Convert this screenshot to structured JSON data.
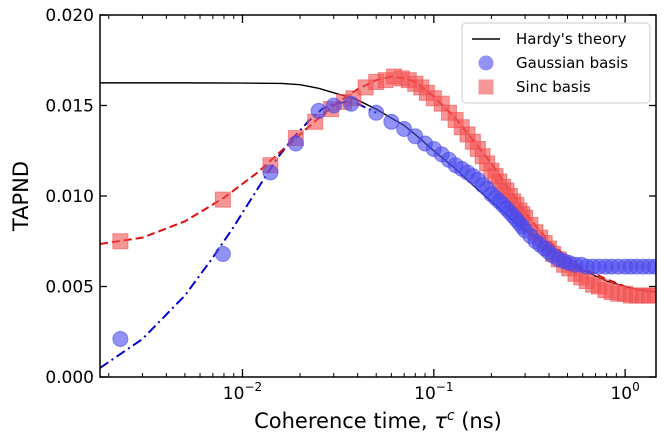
{
  "chart_data": {
    "type": "scatter",
    "ylabel": "TAPND",
    "xlabel": "Coherence time, ",
    "xlabel_symbol": "τ",
    "xlabel_superscript": "c",
    "xlabel_unit": " (ns)",
    "xscale": "log",
    "xlim": [
      0.0018,
      1.45
    ],
    "ylim": [
      0,
      0.02
    ],
    "grid": false,
    "legend_position": "top-right",
    "x_ticks": [
      {
        "value": 0.01,
        "base": "10",
        "exp": "−2"
      },
      {
        "value": 0.1,
        "base": "10",
        "exp": "−1"
      },
      {
        "value": 1,
        "base": "10",
        "exp": "0"
      }
    ],
    "y_ticks": [
      {
        "value": 0,
        "label": "0.000"
      },
      {
        "value": 0.005,
        "label": "0.005"
      },
      {
        "value": 0.01,
        "label": "0.010"
      },
      {
        "value": 0.015,
        "label": "0.015"
      },
      {
        "value": 0.02,
        "label": "0.020"
      }
    ],
    "legend": [
      {
        "label": "Hardy's theory",
        "kind": "line",
        "color": "#000000"
      },
      {
        "label": "Gaussian basis",
        "kind": "circle",
        "color": "#4a4aee"
      },
      {
        "label": "Sinc basis",
        "kind": "square",
        "color": "#f25050"
      }
    ],
    "series": [
      {
        "name": "Hardy's theory",
        "kind": "line",
        "color": "#000000",
        "dash": "",
        "x": [
          0.0018,
          0.005,
          0.01,
          0.016,
          0.02,
          0.025,
          0.03,
          0.035,
          0.04,
          0.05,
          0.06,
          0.07,
          0.08,
          0.1,
          0.13,
          0.16,
          0.2,
          0.25,
          0.3,
          0.4,
          0.5,
          0.6,
          0.8,
          1.0,
          1.2,
          1.45
        ],
        "y": [
          0.01625,
          0.01625,
          0.01624,
          0.01622,
          0.01615,
          0.01595,
          0.0157,
          0.0155,
          0.0153,
          0.0148,
          0.0143,
          0.0139,
          0.0134,
          0.0125,
          0.0115,
          0.0106,
          0.0097,
          0.0088,
          0.0081,
          0.0072,
          0.0064,
          0.0059,
          0.0053,
          0.005,
          0.0048,
          0.0047
        ]
      },
      {
        "name": "Gaussian fit",
        "kind": "line",
        "color": "#0000c8",
        "dash": "10,4,2,4",
        "x": [
          0.0018,
          0.003,
          0.005,
          0.007,
          0.009,
          0.012,
          0.015,
          0.018,
          0.022,
          0.026,
          0.03,
          0.035,
          0.04,
          0.05
        ],
        "y": [
          0.0005,
          0.0021,
          0.0045,
          0.0066,
          0.0083,
          0.0104,
          0.012,
          0.0131,
          0.0141,
          0.0148,
          0.0151,
          0.0152,
          0.0151,
          0.0146
        ]
      },
      {
        "name": "Sinc fit",
        "kind": "line",
        "color": "#e01010",
        "dash": "8,4",
        "x": [
          0.0018,
          0.003,
          0.005,
          0.008,
          0.012,
          0.016,
          0.02,
          0.025,
          0.03,
          0.035,
          0.04,
          0.05,
          0.06,
          0.07,
          0.08,
          0.1,
          0.13,
          0.16,
          0.2,
          0.25,
          0.3,
          0.35,
          0.4,
          0.5,
          0.6,
          0.8,
          1.0,
          1.2,
          1.45
        ],
        "y": [
          0.00735,
          0.0077,
          0.0086,
          0.0099,
          0.0113,
          0.0125,
          0.0134,
          0.0143,
          0.015,
          0.0155,
          0.0159,
          0.0164,
          0.0166,
          0.0165,
          0.0163,
          0.0155,
          0.0143,
          0.0131,
          0.0118,
          0.0103,
          0.0091,
          0.0082,
          0.0075,
          0.0066,
          0.006,
          0.0054,
          0.005,
          0.0048,
          0.0047
        ]
      },
      {
        "name": "Sinc basis",
        "kind": "square",
        "color": "#f25050",
        "x": [
          0.0023,
          0.0079,
          0.014,
          0.019,
          0.024,
          0.029,
          0.034,
          0.038,
          0.044,
          0.05,
          0.056,
          0.062,
          0.068,
          0.074,
          0.08,
          0.086,
          0.092,
          0.1,
          0.11,
          0.12,
          0.13,
          0.14,
          0.15,
          0.16,
          0.17,
          0.18,
          0.19,
          0.2,
          0.21,
          0.22,
          0.23,
          0.24,
          0.25,
          0.26,
          0.27,
          0.28,
          0.29,
          0.3,
          0.32,
          0.34,
          0.36,
          0.38,
          0.4,
          0.42,
          0.45,
          0.48,
          0.51,
          0.55,
          0.59,
          0.63,
          0.68,
          0.73,
          0.79,
          0.85,
          0.92,
          1.0,
          1.07,
          1.15,
          1.24,
          1.33,
          1.43
        ],
        "y": [
          0.0075,
          0.0098,
          0.0117,
          0.0132,
          0.0141,
          0.0148,
          0.0152,
          0.0154,
          0.016,
          0.0163,
          0.0164,
          0.0166,
          0.0165,
          0.0164,
          0.0162,
          0.016,
          0.0157,
          0.0154,
          0.0151,
          0.0146,
          0.0142,
          0.0138,
          0.0134,
          0.013,
          0.0126,
          0.0122,
          0.0118,
          0.0114,
          0.0111,
          0.0108,
          0.0105,
          0.0103,
          0.01,
          0.0097,
          0.0095,
          0.0092,
          0.009,
          0.0088,
          0.0084,
          0.008,
          0.0077,
          0.0074,
          0.0071,
          0.0068,
          0.0065,
          0.0062,
          0.006,
          0.0057,
          0.0055,
          0.0053,
          0.0051,
          0.005,
          0.0048,
          0.0047,
          0.0046,
          0.0046,
          0.0045,
          0.0045,
          0.0045,
          0.0045,
          0.0045
        ]
      },
      {
        "name": "Gaussian basis",
        "kind": "circle",
        "color": "#4a4aee",
        "x": [
          0.0023,
          0.0079,
          0.014,
          0.019,
          0.025,
          0.03,
          0.037,
          0.05,
          0.06,
          0.07,
          0.08,
          0.09,
          0.1,
          0.11,
          0.12,
          0.13,
          0.14,
          0.15,
          0.16,
          0.17,
          0.18,
          0.19,
          0.2,
          0.21,
          0.22,
          0.23,
          0.24,
          0.25,
          0.26,
          0.27,
          0.28,
          0.29,
          0.3,
          0.32,
          0.34,
          0.36,
          0.38,
          0.4,
          0.42,
          0.45,
          0.48,
          0.51,
          0.55,
          0.59,
          0.63,
          0.68,
          0.73,
          0.79,
          0.85,
          0.92,
          1.0,
          1.07,
          1.15,
          1.24,
          1.33,
          1.43
        ],
        "y": [
          0.0021,
          0.0068,
          0.0113,
          0.0129,
          0.0147,
          0.015,
          0.0151,
          0.0146,
          0.0141,
          0.0137,
          0.0133,
          0.0129,
          0.0126,
          0.0123,
          0.012,
          0.0117,
          0.0115,
          0.0113,
          0.0111,
          0.0109,
          0.0106,
          0.0104,
          0.0101,
          0.0099,
          0.0097,
          0.0095,
          0.0093,
          0.0091,
          0.0089,
          0.0087,
          0.0085,
          0.0083,
          0.0081,
          0.0078,
          0.0075,
          0.0073,
          0.0071,
          0.0069,
          0.0067,
          0.0065,
          0.0064,
          0.0063,
          0.0062,
          0.0062,
          0.0061,
          0.0061,
          0.0061,
          0.0061,
          0.0061,
          0.0061,
          0.0061,
          0.0061,
          0.0061,
          0.0061,
          0.0061,
          0.0061
        ]
      }
    ]
  }
}
